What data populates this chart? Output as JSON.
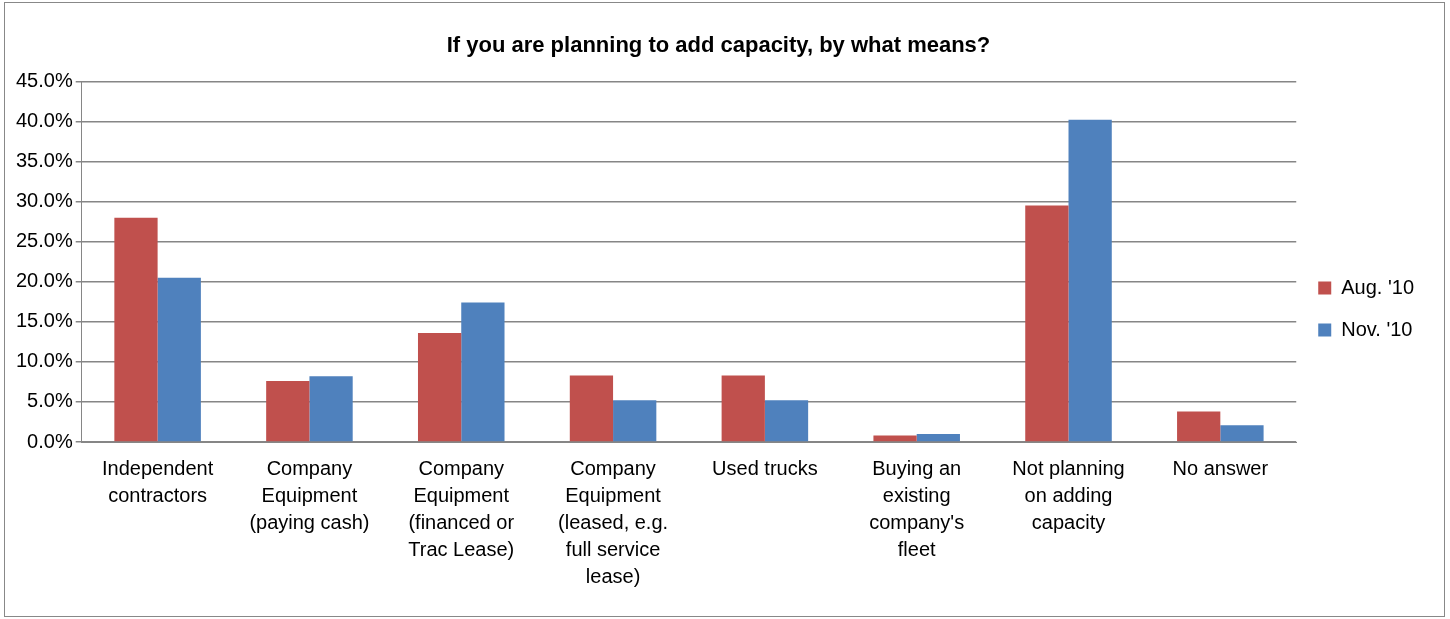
{
  "chart_data": {
    "type": "bar",
    "title": "If you are planning to add capacity, by what means?",
    "categories": [
      "Independent contractors",
      "Company Equipment (paying cash)",
      "Company Equipment (financed or Trac Lease)",
      "Company Equipment (leased, e.g. full service lease)",
      "Used trucks",
      "Buying an existing company's fleet",
      "Not planning on adding capacity",
      "No answer"
    ],
    "series": [
      {
        "name": "Aug. '10",
        "color": "#c0504d",
        "values": [
          28.0,
          7.6,
          13.6,
          8.3,
          8.3,
          0.8,
          29.5,
          3.8
        ]
      },
      {
        "name": "Nov. '10",
        "color": "#4f81bd",
        "values": [
          20.5,
          8.2,
          17.4,
          5.2,
          5.2,
          1.0,
          40.2,
          2.1
        ]
      }
    ],
    "ylim": [
      0,
      45
    ],
    "yticks": [
      {
        "value": 0,
        "label": "0.0%"
      },
      {
        "value": 5,
        "label": "5.0%"
      },
      {
        "value": 10,
        "label": "10.0%"
      },
      {
        "value": 15,
        "label": "15.0%"
      },
      {
        "value": 20,
        "label": "20.0%"
      },
      {
        "value": 25,
        "label": "25.0%"
      },
      {
        "value": 30,
        "label": "30.0%"
      },
      {
        "value": 35,
        "label": "35.0%"
      },
      {
        "value": 40,
        "label": "40.0%"
      },
      {
        "value": 45,
        "label": "45.0%"
      }
    ],
    "grid": "y",
    "legend": "right"
  }
}
